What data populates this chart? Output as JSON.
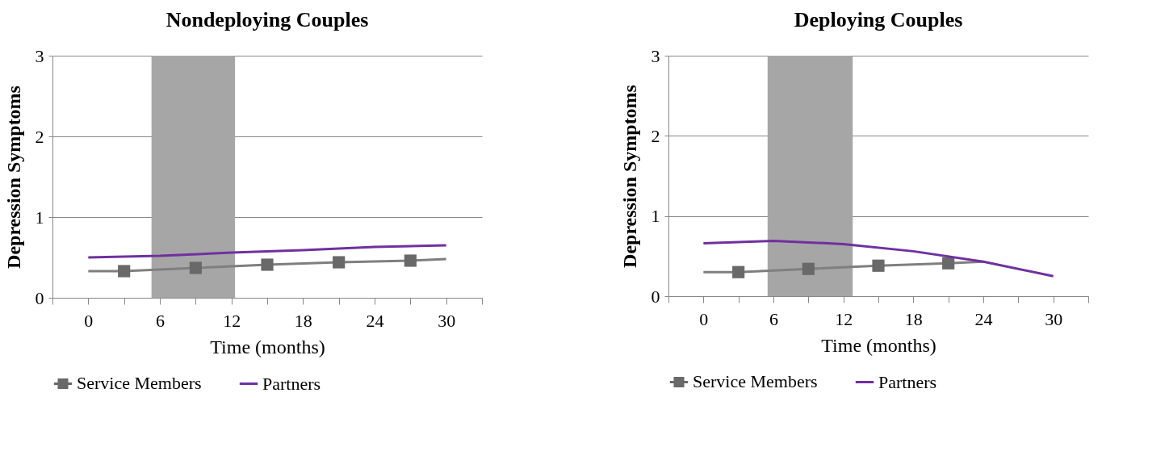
{
  "chart_data": [
    {
      "type": "line",
      "title": "Nondeploying Couples",
      "xlabel": "Time (months)",
      "ylabel": "Depression Symptoms",
      "xlim": [
        -3,
        33
      ],
      "xticks": [
        {
          "value": -3,
          "label": null
        },
        0,
        {
          "value": 3,
          "label": null
        },
        6,
        {
          "value": 9,
          "label": null
        },
        12,
        {
          "value": 15,
          "label": null
        },
        18,
        {
          "value": 21,
          "label": null
        },
        24,
        {
          "value": 27,
          "label": null
        },
        30,
        {
          "value": 33,
          "label": null
        }
      ],
      "ylim": [
        0,
        3
      ],
      "yticks": [
        0,
        1,
        2,
        3
      ],
      "grid": "y",
      "legend": "bottom",
      "bands": [
        {
          "axis": "x",
          "from": 5.3,
          "to": 12.3,
          "color": "#a6a6a6"
        }
      ],
      "series": [
        {
          "color": "#7f7f7f",
          "x": [
            0,
            3,
            9,
            15,
            21,
            27,
            30
          ],
          "values": [
            0.33,
            0.33,
            0.37,
            0.41,
            0.44,
            0.46,
            0.48
          ]
        },
        {
          "name": "Service Members",
          "type": "scatter",
          "marker": "square",
          "color": "#696969",
          "x": [
            3,
            9,
            15,
            21,
            27
          ],
          "values": [
            0.33,
            0.37,
            0.41,
            0.44,
            0.46
          ]
        },
        {
          "name": "Partners",
          "color": "#7030a0",
          "x": [
            0,
            6,
            12,
            18,
            24,
            30
          ],
          "values": [
            0.5,
            0.52,
            0.56,
            0.59,
            0.63,
            0.65
          ]
        }
      ]
    },
    {
      "type": "line",
      "title": "Deploying Couples",
      "xlabel": "Time (months)",
      "ylabel": "Depression Symptoms",
      "xlim": [
        -3,
        33
      ],
      "xticks": [
        {
          "value": -3,
          "label": null
        },
        0,
        {
          "value": 3,
          "label": null
        },
        6,
        {
          "value": 9,
          "label": null
        },
        12,
        {
          "value": 15,
          "label": null
        },
        18,
        {
          "value": 21,
          "label": null
        },
        24,
        {
          "value": 27,
          "label": null
        },
        30,
        {
          "value": 33,
          "label": null
        }
      ],
      "ylim": [
        0,
        3
      ],
      "yticks": [
        0,
        1,
        2,
        3
      ],
      "grid": "y",
      "legend": "bottom",
      "bands": [
        {
          "axis": "x",
          "from": 5.5,
          "to": 12.8,
          "color": "#a6a6a6"
        }
      ],
      "series": [
        {
          "color": "#7f7f7f",
          "x": [
            0,
            3,
            9,
            15,
            21,
            24
          ],
          "values": [
            0.3,
            0.3,
            0.34,
            0.38,
            0.41,
            0.43
          ]
        },
        {
          "name": "Service Members",
          "type": "scatter",
          "marker": "square",
          "color": "#696969",
          "x": [
            3,
            9,
            15,
            21
          ],
          "values": [
            0.3,
            0.34,
            0.38,
            0.41
          ]
        },
        {
          "name": "Partners",
          "color": "#7030a0",
          "x": [
            0,
            6,
            12,
            18,
            24,
            30
          ],
          "values": [
            0.66,
            0.69,
            0.65,
            0.56,
            0.43,
            0.25
          ]
        }
      ]
    }
  ]
}
